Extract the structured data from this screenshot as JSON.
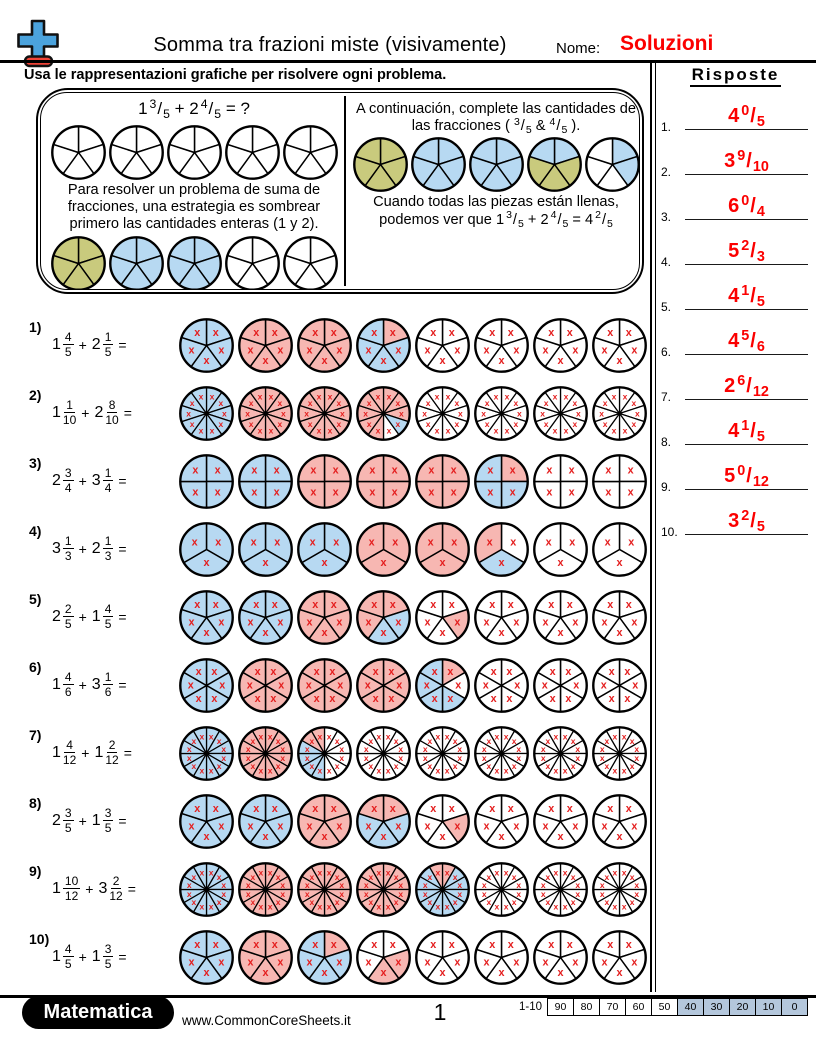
{
  "header": {
    "title": "Somma tra frazioni miste (visivamente)",
    "name_label": "Nome:",
    "name_value": "Soluzioni",
    "instruction": "Usa le rappresentazioni grafiche per risolvere ogni problema.",
    "logo_icon": "plus-minus-icon"
  },
  "answers": {
    "heading": "Risposte",
    "items": [
      {
        "no": "1.",
        "w": "4",
        "n": "0",
        "d": "5"
      },
      {
        "no": "2.",
        "w": "3",
        "n": "9",
        "d": "10"
      },
      {
        "no": "3.",
        "w": "6",
        "n": "0",
        "d": "4"
      },
      {
        "no": "4.",
        "w": "5",
        "n": "2",
        "d": "3"
      },
      {
        "no": "5.",
        "w": "4",
        "n": "1",
        "d": "5"
      },
      {
        "no": "6.",
        "w": "4",
        "n": "5",
        "d": "6"
      },
      {
        "no": "7.",
        "w": "2",
        "n": "6",
        "d": "12"
      },
      {
        "no": "8.",
        "w": "4",
        "n": "1",
        "d": "5"
      },
      {
        "no": "9.",
        "w": "5",
        "n": "0",
        "d": "12"
      },
      {
        "no": "10.",
        "w": "3",
        "n": "2",
        "d": "5"
      }
    ]
  },
  "example": {
    "left": {
      "equation_tokens": [
        {
          "t": "frac",
          "w": "1",
          "n": "3",
          "d": "5"
        },
        {
          "t": "txt",
          "v": " + "
        },
        {
          "t": "frac",
          "w": "2",
          "n": "4",
          "d": "5"
        },
        {
          "t": "txt",
          "v": " = ?"
        }
      ],
      "circles_top": [
        "WWWWW",
        "WWWWW",
        "WWWWW",
        "WWWWW",
        "WWWWW"
      ],
      "para": "Para resolver un problema de suma de fracciones, una estrategia es sombrear primero las cantidades enteras (1 y 2).",
      "circles_bottom": [
        "OOOOO",
        "BBBBB",
        "BBBBB",
        "WWWWW",
        "WWWWW"
      ]
    },
    "right": {
      "para1_tokens": [
        {
          "t": "txt",
          "v": "A continuación, complete las cantidades de las fracciones ( "
        },
        {
          "t": "frac",
          "w": "",
          "n": "3",
          "d": "5"
        },
        {
          "t": "txt",
          "v": " & "
        },
        {
          "t": "frac",
          "w": "",
          "n": "4",
          "d": "5"
        },
        {
          "t": "txt",
          "v": " )."
        }
      ],
      "circles": [
        "OOOOO",
        "BBBBB",
        "BBBBB",
        "BOOOB",
        "BBWWW"
      ],
      "para2_tokens": [
        {
          "t": "txt",
          "v": "Cuando todas las piezas están llenas, podemos ver que "
        },
        {
          "t": "frac",
          "w": "1",
          "n": "3",
          "d": "5"
        },
        {
          "t": "txt",
          "v": " + "
        },
        {
          "t": "frac",
          "w": "2",
          "n": "4",
          "d": "5"
        },
        {
          "t": "txt",
          "v": " = "
        },
        {
          "t": "frac",
          "w": "4",
          "n": "2",
          "d": "5"
        }
      ]
    }
  },
  "ops": {
    "plus": "+",
    "equals": "="
  },
  "problems": [
    {
      "label": "1)",
      "a": {
        "w": "1",
        "n": "4",
        "d": "5"
      },
      "b": {
        "w": "2",
        "n": "1",
        "d": "5"
      },
      "circles": [
        "BBBBB",
        "PPPPP",
        "PPPPP",
        "PBBBB",
        "WWWWW",
        "WWWWW",
        "WWWWW",
        "WWWWW"
      ]
    },
    {
      "label": "2)",
      "a": {
        "w": "1",
        "n": "1",
        "d": "10"
      },
      "b": {
        "w": "2",
        "n": "8",
        "d": "10"
      },
      "circles": [
        "BBBBBBBBBB",
        "PPPPPPPPPP",
        "PPPPPPPPPP",
        "PPPBWPPPPP",
        "WWWWWWWWWW",
        "WWWWWWWWWW",
        "WWWWWWWWWW",
        "WWWWWWWWWW"
      ]
    },
    {
      "label": "3)",
      "a": {
        "w": "2",
        "n": "3",
        "d": "4"
      },
      "b": {
        "w": "3",
        "n": "1",
        "d": "4"
      },
      "circles": [
        "BBBB",
        "BBBB",
        "PPPP",
        "PPPP",
        "PPPP",
        "PBBB",
        "WWWW",
        "WWWW"
      ]
    },
    {
      "label": "4)",
      "a": {
        "w": "3",
        "n": "1",
        "d": "3"
      },
      "b": {
        "w": "2",
        "n": "1",
        "d": "3"
      },
      "circles": [
        "BBB",
        "BBB",
        "BBB",
        "PPP",
        "PPP",
        "WBP",
        "WWW",
        "WWW"
      ]
    },
    {
      "label": "5)",
      "a": {
        "w": "2",
        "n": "2",
        "d": "5"
      },
      "b": {
        "w": "1",
        "n": "4",
        "d": "5"
      },
      "circles": [
        "BBBBB",
        "BBBBB",
        "PPPPP",
        "PBBPP",
        "WPWWW",
        "WWWWW",
        "WWWWW",
        "WWWWW"
      ]
    },
    {
      "label": "6)",
      "a": {
        "w": "1",
        "n": "4",
        "d": "6"
      },
      "b": {
        "w": "3",
        "n": "1",
        "d": "6"
      },
      "circles": [
        "BBBBBB",
        "PPPPPP",
        "PPPPPP",
        "PPPPPP",
        "PWBBBB",
        "WWWWWW",
        "WWWWWW",
        "WWWWWW"
      ]
    },
    {
      "label": "7)",
      "a": {
        "w": "1",
        "n": "4",
        "d": "12"
      },
      "b": {
        "w": "1",
        "n": "2",
        "d": "12"
      },
      "circles": [
        "BBBBBBBBBBBB",
        "PPPPPPPPPPPP",
        "WWWWWWBBBBPP",
        "WWWWWWWWWWWW",
        "WWWWWWWWWWWW",
        "WWWWWWWWWWWW",
        "WWWWWWWWWWWW",
        "WWWWWWWWWWWW"
      ]
    },
    {
      "label": "8)",
      "a": {
        "w": "2",
        "n": "3",
        "d": "5"
      },
      "b": {
        "w": "1",
        "n": "3",
        "d": "5"
      },
      "circles": [
        "BBBBB",
        "BBBBB",
        "PPPPP",
        "PBBBP",
        "WPWWW",
        "WWWWW",
        "WWWWW",
        "WWWWW"
      ]
    },
    {
      "label": "9)",
      "a": {
        "w": "1",
        "n": "10",
        "d": "12"
      },
      "b": {
        "w": "3",
        "n": "2",
        "d": "12"
      },
      "circles": [
        "BBBBBBBBBBBB",
        "PPPPPPPPPPPP",
        "PPPPPPPPPPPP",
        "PPPPPPPPPPPP",
        "PBBBBBBBBBBP",
        "WWWWWWWWWWWW",
        "WWWWWWWWWWWW",
        "WWWWWWWWWWWW"
      ]
    },
    {
      "label": "10)",
      "a": {
        "w": "1",
        "n": "4",
        "d": "5"
      },
      "b": {
        "w": "1",
        "n": "3",
        "d": "5"
      },
      "circles": [
        "BBBBB",
        "PPPPP",
        "PBBBB",
        "WPPWW",
        "WWWWW",
        "WWWWW",
        "WWWWW",
        "WWWWW"
      ]
    }
  ],
  "footer": {
    "brand": "Matematica",
    "site": "www.CommonCoreSheets.it",
    "page": "1",
    "score_label": "1-10",
    "score_cells": [
      {
        "v": "90",
        "hl": false
      },
      {
        "v": "80",
        "hl": false
      },
      {
        "v": "70",
        "hl": false
      },
      {
        "v": "60",
        "hl": false
      },
      {
        "v": "50",
        "hl": false
      },
      {
        "v": "40",
        "hl": true
      },
      {
        "v": "30",
        "hl": true
      },
      {
        "v": "20",
        "hl": true
      },
      {
        "v": "10",
        "hl": true
      },
      {
        "v": "0",
        "hl": true
      }
    ]
  },
  "colors": {
    "blue": "#b7d9f2",
    "pink": "#f7b7b2",
    "olive": "#c9ca7d",
    "white": "#ffffff",
    "x_mark": "#e41f1f",
    "answer_red": "#fb0000",
    "score_highlight": "#b4c7dc",
    "logo_blue": "#4ba3dd",
    "logo_red": "#f04438"
  }
}
